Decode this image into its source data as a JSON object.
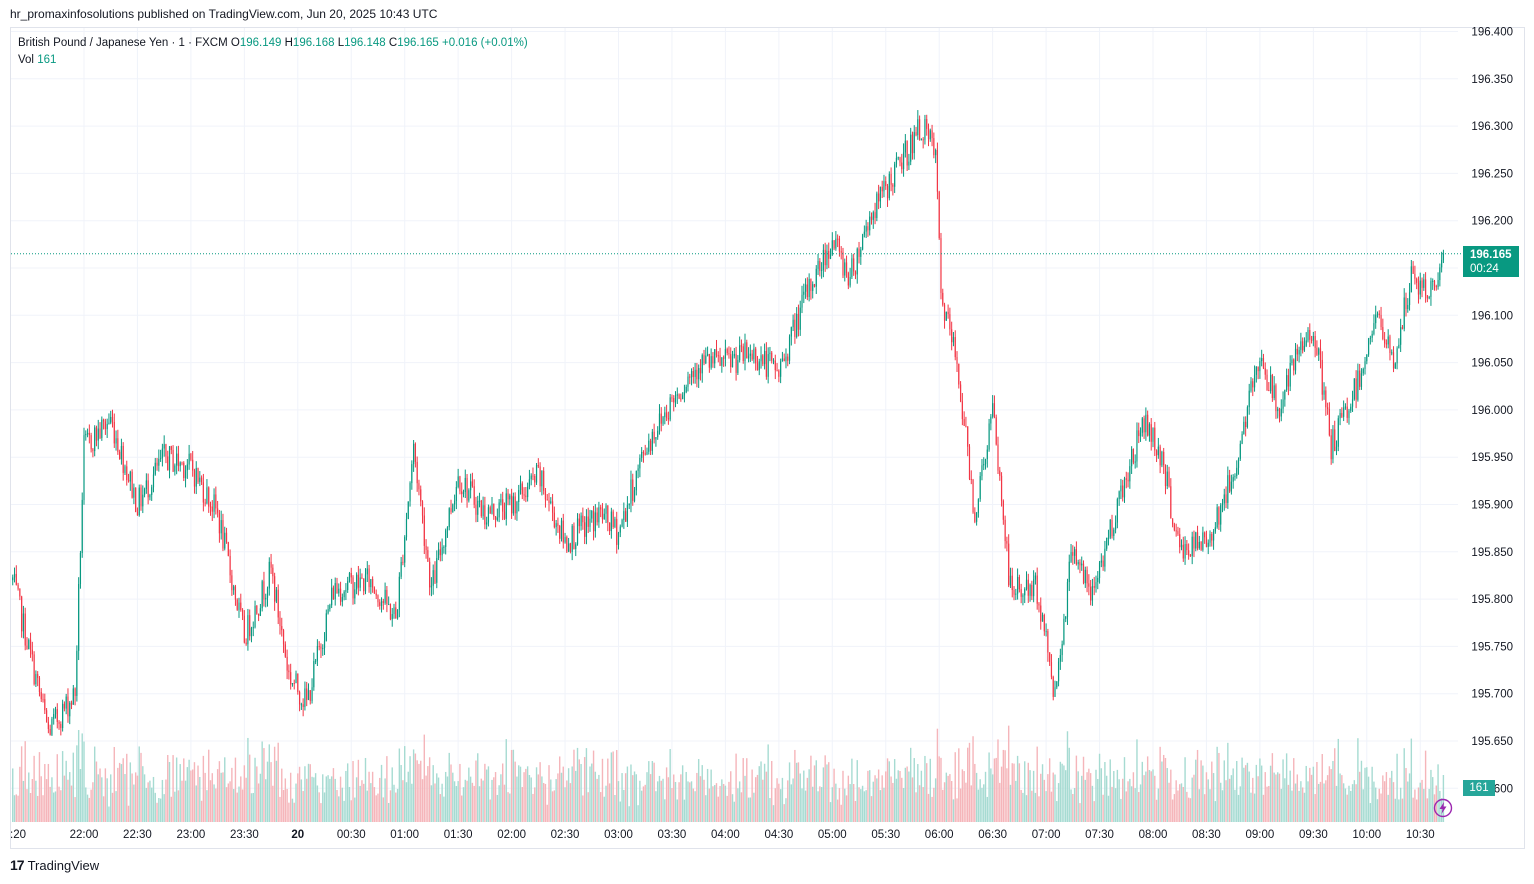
{
  "header": {
    "publisher_line": "hr_promaxinfosolutions published on TradingView.com, Jun 20, 2025 10:43 UTC"
  },
  "legend": {
    "symbol": "British Pound / Japanese Yen · 1 · FXCM",
    "o_label": "O",
    "o_value": "196.149",
    "h_label": "H",
    "h_value": "196.168",
    "l_label": "L",
    "l_value": "196.148",
    "c_label": "C",
    "c_value": "196.165",
    "change": "+0.016 (+0.01%)",
    "vol_label": "Vol",
    "vol_value": "161"
  },
  "price_tag": {
    "price": "196.165",
    "countdown": "00:24"
  },
  "vol_tag": "161",
  "footer": {
    "brand": "TradingView",
    "brand_mark": "17"
  },
  "colors": {
    "up": "#089981",
    "down": "#f23645",
    "up_vol": "#a6dbd2",
    "down_vol": "#f5b5ba",
    "grid": "#f0f3fa"
  },
  "chart_data": {
    "type": "candlestick",
    "title": "British Pound / Japanese Yen · 1 · FXCM",
    "y_ticks": [
      "196.400",
      "196.350",
      "196.300",
      "196.250",
      "196.200",
      "196.150",
      "196.100",
      "196.050",
      "196.000",
      "195.950",
      "195.900",
      "195.850",
      "195.800",
      "195.750",
      "195.700",
      "195.650",
      "195.600"
    ],
    "ylim": [
      195.6,
      196.4
    ],
    "x_ticks": [
      ":20",
      "22:00",
      "22:30",
      "23:00",
      "23:30",
      "20",
      "00:30",
      "01:00",
      "01:30",
      "02:00",
      "02:30",
      "03:00",
      "03:30",
      "04:00",
      "04:30",
      "05:00",
      "05:30",
      "06:00",
      "06:30",
      "07:00",
      "07:30",
      "08:00",
      "08:30",
      "09:00",
      "09:30",
      "10:00",
      "10:30"
    ],
    "last_price": 196.165,
    "price_path": [
      {
        "t": "21:20",
        "p": 195.82
      },
      {
        "t": "21:40",
        "p": 195.66
      },
      {
        "t": "21:55",
        "p": 195.7
      },
      {
        "t": "22:00",
        "p": 195.96
      },
      {
        "t": "22:15",
        "p": 195.99
      },
      {
        "t": "22:30",
        "p": 195.9
      },
      {
        "t": "22:45",
        "p": 195.95
      },
      {
        "t": "23:00",
        "p": 195.94
      },
      {
        "t": "23:15",
        "p": 195.89
      },
      {
        "t": "23:30",
        "p": 195.76
      },
      {
        "t": "23:45",
        "p": 195.83
      },
      {
        "t": "23:55",
        "p": 195.72
      },
      {
        "t": "00:05",
        "p": 195.69
      },
      {
        "t": "00:20",
        "p": 195.81
      },
      {
        "t": "00:40",
        "p": 195.82
      },
      {
        "t": "00:55",
        "p": 195.78
      },
      {
        "t": "01:05",
        "p": 195.96
      },
      {
        "t": "01:15",
        "p": 195.81
      },
      {
        "t": "01:30",
        "p": 195.93
      },
      {
        "t": "01:45",
        "p": 195.89
      },
      {
        "t": "02:00",
        "p": 195.9
      },
      {
        "t": "02:15",
        "p": 195.93
      },
      {
        "t": "02:30",
        "p": 195.86
      },
      {
        "t": "02:50",
        "p": 195.89
      },
      {
        "t": "03:00",
        "p": 195.87
      },
      {
        "t": "03:15",
        "p": 195.96
      },
      {
        "t": "03:30",
        "p": 196.01
      },
      {
        "t": "03:45",
        "p": 196.05
      },
      {
        "t": "04:00",
        "p": 196.05
      },
      {
        "t": "04:15",
        "p": 196.06
      },
      {
        "t": "04:30",
        "p": 196.04
      },
      {
        "t": "04:45",
        "p": 196.12
      },
      {
        "t": "05:00",
        "p": 196.18
      },
      {
        "t": "05:10",
        "p": 196.14
      },
      {
        "t": "05:20",
        "p": 196.2
      },
      {
        "t": "05:35",
        "p": 196.25
      },
      {
        "t": "05:50",
        "p": 196.3
      },
      {
        "t": "05:58",
        "p": 196.27
      },
      {
        "t": "06:01",
        "p": 196.12
      },
      {
        "t": "06:10",
        "p": 196.05
      },
      {
        "t": "06:20",
        "p": 195.89
      },
      {
        "t": "06:30",
        "p": 196.0
      },
      {
        "t": "06:40",
        "p": 195.81
      },
      {
        "t": "06:55",
        "p": 195.81
      },
      {
        "t": "07:05",
        "p": 195.7
      },
      {
        "t": "07:15",
        "p": 195.86
      },
      {
        "t": "07:25",
        "p": 195.8
      },
      {
        "t": "07:40",
        "p": 195.9
      },
      {
        "t": "07:55",
        "p": 195.99
      },
      {
        "t": "08:05",
        "p": 195.95
      },
      {
        "t": "08:15",
        "p": 195.85
      },
      {
        "t": "08:30",
        "p": 195.86
      },
      {
        "t": "08:45",
        "p": 195.93
      },
      {
        "t": "09:00",
        "p": 196.06
      },
      {
        "t": "09:10",
        "p": 196.0
      },
      {
        "t": "09:20",
        "p": 196.05
      },
      {
        "t": "09:30",
        "p": 196.09
      },
      {
        "t": "09:40",
        "p": 195.96
      },
      {
        "t": "09:55",
        "p": 196.03
      },
      {
        "t": "10:05",
        "p": 196.1
      },
      {
        "t": "10:15",
        "p": 196.05
      },
      {
        "t": "10:25",
        "p": 196.14
      },
      {
        "t": "10:35",
        "p": 196.12
      },
      {
        "t": "10:43",
        "p": 196.165
      }
    ],
    "volume_last": 161
  }
}
